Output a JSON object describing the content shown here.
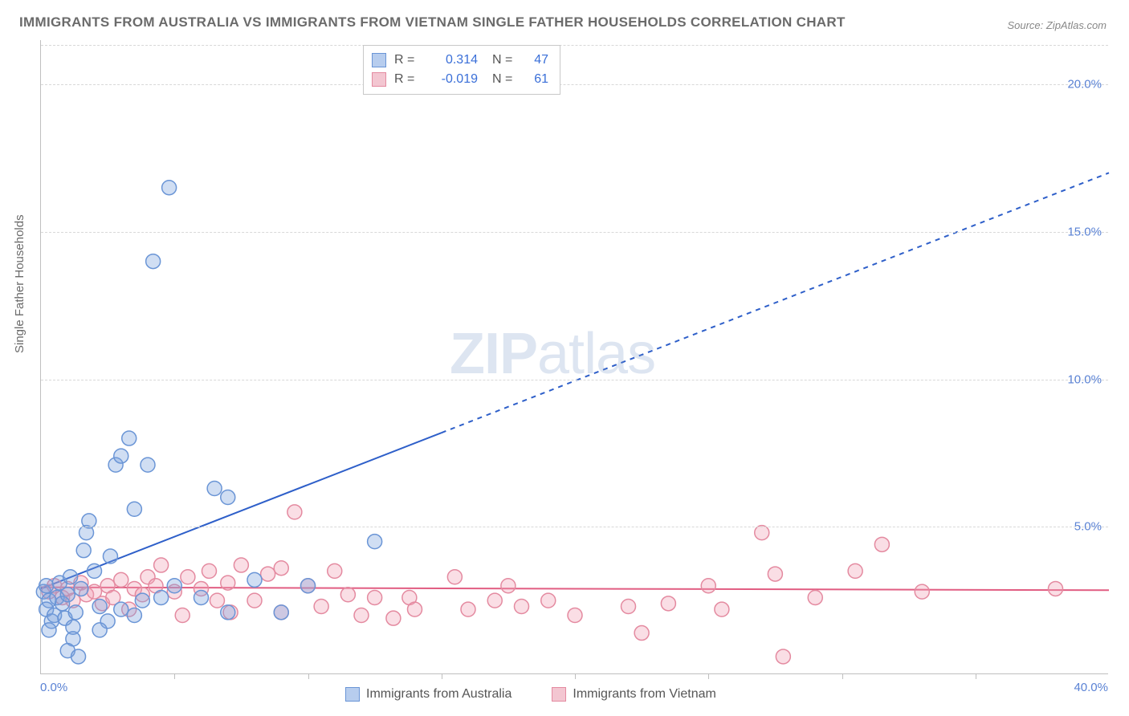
{
  "title": "IMMIGRANTS FROM AUSTRALIA VS IMMIGRANTS FROM VIETNAM SINGLE FATHER HOUSEHOLDS CORRELATION CHART",
  "source": "Source: ZipAtlas.com",
  "y_axis_label": "Single Father Households",
  "watermark": {
    "bold": "ZIP",
    "rest": "atlas"
  },
  "chart": {
    "type": "scatter",
    "xlim": [
      0,
      40
    ],
    "ylim": [
      0,
      21.5
    ],
    "x_ticks": [
      5,
      10,
      15,
      20,
      25,
      30,
      35
    ],
    "y_grid": [
      5,
      10,
      15,
      20
    ],
    "y_tick_labels": [
      "5.0%",
      "10.0%",
      "15.0%",
      "20.0%"
    ],
    "x_origin_label": "0.0%",
    "x_max_label": "40.0%",
    "background_color": "#ffffff",
    "grid_color": "#d8d8d8",
    "axis_color": "#bfbfbf",
    "marker_radius": 9,
    "marker_stroke_width": 1.5,
    "series": [
      {
        "name": "Immigrants from Australia",
        "fill_color": "rgba(120,160,220,0.35)",
        "stroke_color": "#6a95d6",
        "swatch_fill": "#b7cdee",
        "swatch_border": "#6a95d6",
        "r": "0.314",
        "n": "47",
        "trend": {
          "x1": 0,
          "y1": 2.9,
          "x2": 40,
          "y2": 17.0,
          "solid_until_x": 15,
          "color": "#2e5fc9",
          "width": 2
        },
        "points": [
          [
            0.1,
            2.8
          ],
          [
            0.2,
            3.0
          ],
          [
            0.3,
            2.5
          ],
          [
            0.2,
            2.2
          ],
          [
            0.4,
            1.8
          ],
          [
            0.3,
            1.5
          ],
          [
            0.5,
            2.0
          ],
          [
            0.6,
            2.6
          ],
          [
            0.7,
            3.1
          ],
          [
            0.8,
            2.4
          ],
          [
            0.9,
            1.9
          ],
          [
            1.0,
            2.7
          ],
          [
            1.1,
            3.3
          ],
          [
            1.2,
            1.6
          ],
          [
            1.3,
            2.1
          ],
          [
            1.5,
            2.9
          ],
          [
            1.6,
            4.2
          ],
          [
            1.7,
            4.8
          ],
          [
            1.8,
            5.2
          ],
          [
            1.2,
            1.2
          ],
          [
            2.0,
            3.5
          ],
          [
            2.2,
            2.3
          ],
          [
            2.5,
            1.8
          ],
          [
            2.6,
            4.0
          ],
          [
            2.8,
            7.1
          ],
          [
            3.0,
            7.4
          ],
          [
            3.3,
            8.0
          ],
          [
            3.5,
            5.6
          ],
          [
            3.0,
            2.2
          ],
          [
            1.0,
            0.8
          ],
          [
            3.8,
            2.5
          ],
          [
            4.0,
            7.1
          ],
          [
            4.5,
            2.6
          ],
          [
            5.0,
            3.0
          ],
          [
            6.0,
            2.6
          ],
          [
            6.5,
            6.3
          ],
          [
            7.0,
            2.1
          ],
          [
            7.0,
            6.0
          ],
          [
            8.0,
            3.2
          ],
          [
            9.0,
            2.1
          ],
          [
            2.2,
            1.5
          ],
          [
            1.4,
            0.6
          ],
          [
            4.2,
            14.0
          ],
          [
            4.8,
            16.5
          ],
          [
            10.0,
            3.0
          ],
          [
            12.5,
            4.5
          ],
          [
            3.5,
            2.0
          ]
        ]
      },
      {
        "name": "Immigrants from Vietnam",
        "fill_color": "rgba(240,160,180,0.35)",
        "stroke_color": "#e48aa0",
        "swatch_fill": "#f3c6d1",
        "swatch_border": "#e48aa0",
        "r": "-0.019",
        "n": "61",
        "trend": {
          "x1": 0,
          "y1": 2.95,
          "x2": 40,
          "y2": 2.85,
          "solid_until_x": 40,
          "color": "#e15d82",
          "width": 2
        },
        "points": [
          [
            0.3,
            2.8
          ],
          [
            0.5,
            3.0
          ],
          [
            0.8,
            2.6
          ],
          [
            1.0,
            2.9
          ],
          [
            1.2,
            2.5
          ],
          [
            1.5,
            3.1
          ],
          [
            1.7,
            2.7
          ],
          [
            2.0,
            2.8
          ],
          [
            2.3,
            2.4
          ],
          [
            2.5,
            3.0
          ],
          [
            2.7,
            2.6
          ],
          [
            3.0,
            3.2
          ],
          [
            3.3,
            2.2
          ],
          [
            3.5,
            2.9
          ],
          [
            3.8,
            2.7
          ],
          [
            4.0,
            3.3
          ],
          [
            4.3,
            3.0
          ],
          [
            4.5,
            3.7
          ],
          [
            5.0,
            2.8
          ],
          [
            5.3,
            2.0
          ],
          [
            5.5,
            3.3
          ],
          [
            6.0,
            2.9
          ],
          [
            6.3,
            3.5
          ],
          [
            6.6,
            2.5
          ],
          [
            7.0,
            3.1
          ],
          [
            7.5,
            3.7
          ],
          [
            7.1,
            2.1
          ],
          [
            8.0,
            2.5
          ],
          [
            8.5,
            3.4
          ],
          [
            9.0,
            2.1
          ],
          [
            9.0,
            3.6
          ],
          [
            9.5,
            5.5
          ],
          [
            10.0,
            3.0
          ],
          [
            10.5,
            2.3
          ],
          [
            11.0,
            3.5
          ],
          [
            11.5,
            2.7
          ],
          [
            12.0,
            2.0
          ],
          [
            12.5,
            2.6
          ],
          [
            13.2,
            1.9
          ],
          [
            13.8,
            2.6
          ],
          [
            15.5,
            3.3
          ],
          [
            16.0,
            2.2
          ],
          [
            17.0,
            2.5
          ],
          [
            17.5,
            3.0
          ],
          [
            18.0,
            2.3
          ],
          [
            19.0,
            2.5
          ],
          [
            20.0,
            2.0
          ],
          [
            22.0,
            2.3
          ],
          [
            22.5,
            1.4
          ],
          [
            23.5,
            2.4
          ],
          [
            25.0,
            3.0
          ],
          [
            25.5,
            2.2
          ],
          [
            27.0,
            4.8
          ],
          [
            27.5,
            3.4
          ],
          [
            27.8,
            0.6
          ],
          [
            29.0,
            2.6
          ],
          [
            30.5,
            3.5
          ],
          [
            31.5,
            4.4
          ],
          [
            33.0,
            2.8
          ],
          [
            38.0,
            2.9
          ],
          [
            14.0,
            2.2
          ]
        ]
      }
    ]
  },
  "legend_bottom": {
    "items": [
      "Immigrants from Australia",
      "Immigrants from Vietnam"
    ]
  }
}
